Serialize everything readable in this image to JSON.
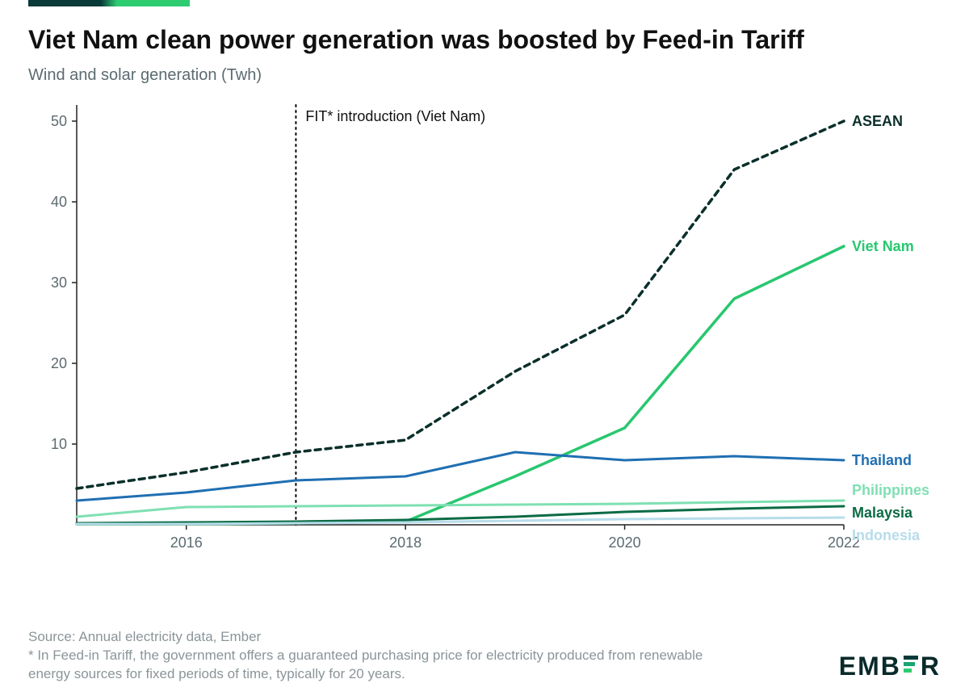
{
  "accent_gradient": [
    "#0a3a3a",
    "#2ecc71"
  ],
  "title": "Viet Nam clean power generation was boosted by Feed-in Tariff",
  "subtitle": "Wind and solar generation (Twh)",
  "chart": {
    "type": "line",
    "background_color": "#ffffff",
    "axis_color": "#222222",
    "tick_label_color": "#5b6b70",
    "tick_fontsize": 18,
    "x_years": [
      2015,
      2016,
      2017,
      2018,
      2019,
      2020,
      2021,
      2022
    ],
    "x_tick_years": [
      2016,
      2018,
      2020,
      2022
    ],
    "xlim": [
      2015,
      2022
    ],
    "ylim": [
      0,
      52
    ],
    "y_ticks": [
      10,
      20,
      30,
      40,
      50
    ],
    "annotation": {
      "x": 2017,
      "label": "FIT* introduction (Viet Nam)",
      "line_style": "dot",
      "line_color": "#000000"
    },
    "series": [
      {
        "name": "ASEAN",
        "color": "#0a2f2a",
        "label_color": "#0a2f2a",
        "width": 3.5,
        "dash": "7,6",
        "values": [
          4.5,
          6.5,
          9.0,
          10.5,
          19.0,
          26.0,
          44.0,
          50.0
        ]
      },
      {
        "name": "Viet Nam",
        "color": "#28c76f",
        "label_color": "#28c76f",
        "width": 3.5,
        "dash": "",
        "values": [
          0.1,
          0.1,
          0.2,
          0.4,
          6.0,
          12.0,
          28.0,
          34.5
        ]
      },
      {
        "name": "Thailand",
        "color": "#1f6fb2",
        "label_color": "#1f6fb2",
        "width": 3,
        "dash": "",
        "values": [
          3.0,
          4.0,
          5.5,
          6.0,
          9.0,
          8.0,
          8.5,
          8.0
        ]
      },
      {
        "name": "Philippines",
        "color": "#7fe0b2",
        "label_color": "#7fe0b2",
        "width": 3,
        "dash": "",
        "values": [
          1.0,
          2.2,
          2.3,
          2.4,
          2.5,
          2.6,
          2.8,
          3.0
        ]
      },
      {
        "name": "Malaysia",
        "color": "#0b6b45",
        "label_color": "#0b6b45",
        "width": 3,
        "dash": "",
        "values": [
          0.2,
          0.3,
          0.4,
          0.6,
          1.0,
          1.6,
          2.0,
          2.3
        ]
      },
      {
        "name": "Indonesia",
        "color": "#b7dcea",
        "label_color": "#b7dcea",
        "width": 3,
        "dash": "",
        "values": [
          0.1,
          0.1,
          0.2,
          0.3,
          0.5,
          0.7,
          0.8,
          0.9
        ]
      }
    ],
    "label_offsets_y": {
      "ASEAN": 0,
      "Viet Nam": 0,
      "Thailand": 0,
      "Philippines": -13,
      "Malaysia": 8,
      "Indonesia": 22
    }
  },
  "footer": {
    "source": "Source: Annual electricity data, Ember",
    "note": "* In Feed-in Tariff, the government offers a guaranteed purchasing price for electricity produced from renewable energy sources for fixed periods of time, typically for 20 years."
  },
  "logo_text_left": "EMB",
  "logo_text_right": "R",
  "logo_bar_colors": [
    "#0a3a3a",
    "#17a673",
    "#2ecc71"
  ]
}
